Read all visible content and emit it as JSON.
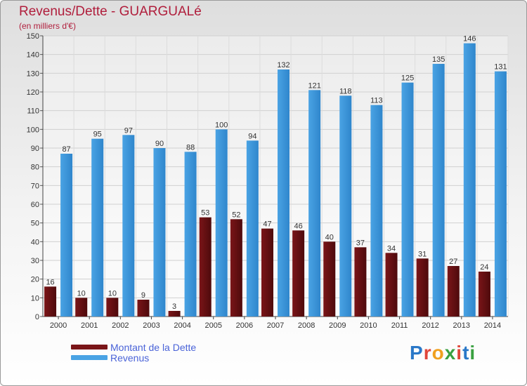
{
  "header": {
    "title": "Revenus/Dette - GUARGUALé",
    "subtitle": "(en milliers d'€)"
  },
  "chart_data": {
    "type": "bar",
    "categories": [
      "2000",
      "2001",
      "2002",
      "2003",
      "2004",
      "2005",
      "2006",
      "2007",
      "2008",
      "2009",
      "2010",
      "2011",
      "2012",
      "2013",
      "2014"
    ],
    "series": [
      {
        "name": "Montant de la Dette",
        "color": "#7a1518",
        "values": [
          16,
          10,
          10,
          9,
          3,
          53,
          52,
          47,
          46,
          40,
          37,
          34,
          31,
          27,
          24
        ]
      },
      {
        "name": "Revenus",
        "color": "#4aa3e4",
        "values": [
          87,
          95,
          97,
          90,
          88,
          100,
          94,
          132,
          121,
          118,
          113,
          125,
          135,
          146,
          131
        ]
      }
    ],
    "y_ticks": [
      "0",
      "10",
      "20",
      "30",
      "40",
      "50",
      "60",
      "70",
      "80",
      "90",
      "100",
      "110",
      "120",
      "130",
      "140",
      "150"
    ],
    "ylim": [
      0,
      150
    ],
    "grid": true,
    "legend_position": "bottom-left"
  },
  "legend": {
    "items": [
      {
        "label": "Montant de la Dette",
        "color": "#7a1518"
      },
      {
        "label": "Revenus",
        "color": "#4aa3e4"
      }
    ]
  },
  "logo": {
    "letters": [
      "P",
      "r",
      "o",
      "x",
      "i",
      "t",
      "i"
    ],
    "colors": [
      "#2a78c8",
      "#e0463a",
      "#f0a020",
      "#3aa040",
      "#e0463a",
      "#2a78c8",
      "#3aa040"
    ]
  }
}
